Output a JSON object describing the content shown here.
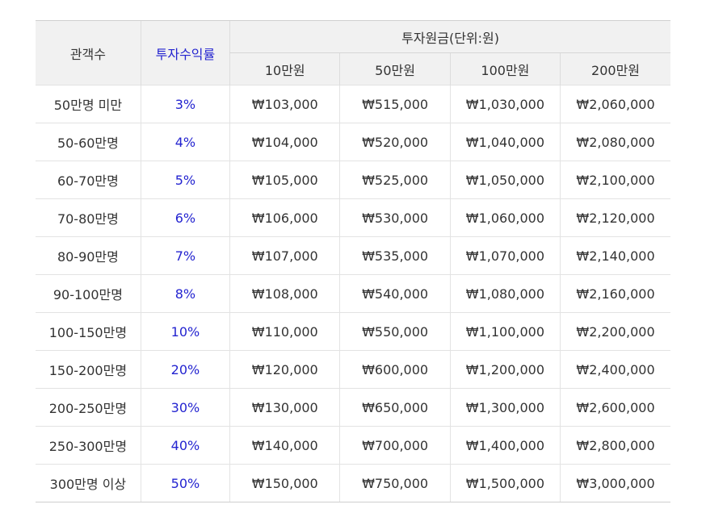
{
  "header": {
    "audience_label": "관객수",
    "rate_label": "투자수익률",
    "investment_label": "투자원금(단위:원)",
    "amounts": [
      "10만원",
      "50만원",
      "100만원",
      "200만원"
    ]
  },
  "colors": {
    "rate_text": "#2424d0",
    "header_bg": "#f1f1f1",
    "body_text": "#333333"
  },
  "rows": [
    {
      "audience": "50만명 미만",
      "rate": "3%",
      "v10": "₩103,000",
      "v50": "₩515,000",
      "v100": "₩1,030,000",
      "v200": "₩2,060,000"
    },
    {
      "audience": "50-60만명",
      "rate": "4%",
      "v10": "₩104,000",
      "v50": "₩520,000",
      "v100": "₩1,040,000",
      "v200": "₩2,080,000"
    },
    {
      "audience": "60-70만명",
      "rate": "5%",
      "v10": "₩105,000",
      "v50": "₩525,000",
      "v100": "₩1,050,000",
      "v200": "₩2,100,000"
    },
    {
      "audience": "70-80만명",
      "rate": "6%",
      "v10": "₩106,000",
      "v50": "₩530,000",
      "v100": "₩1,060,000",
      "v200": "₩2,120,000"
    },
    {
      "audience": "80-90만명",
      "rate": "7%",
      "v10": "₩107,000",
      "v50": "₩535,000",
      "v100": "₩1,070,000",
      "v200": "₩2,140,000"
    },
    {
      "audience": "90-100만명",
      "rate": "8%",
      "v10": "₩108,000",
      "v50": "₩540,000",
      "v100": "₩1,080,000",
      "v200": "₩2,160,000"
    },
    {
      "audience": "100-150만명",
      "rate": "10%",
      "v10": "₩110,000",
      "v50": "₩550,000",
      "v100": "₩1,100,000",
      "v200": "₩2,200,000"
    },
    {
      "audience": "150-200만명",
      "rate": "20%",
      "v10": "₩120,000",
      "v50": "₩600,000",
      "v100": "₩1,200,000",
      "v200": "₩2,400,000"
    },
    {
      "audience": "200-250만명",
      "rate": "30%",
      "v10": "₩130,000",
      "v50": "₩650,000",
      "v100": "₩1,300,000",
      "v200": "₩2,600,000"
    },
    {
      "audience": "250-300만명",
      "rate": "40%",
      "v10": "₩140,000",
      "v50": "₩700,000",
      "v100": "₩1,400,000",
      "v200": "₩2,800,000"
    },
    {
      "audience": "300만명 이상",
      "rate": "50%",
      "v10": "₩150,000",
      "v50": "₩750,000",
      "v100": "₩1,500,000",
      "v200": "₩3,000,000"
    }
  ]
}
